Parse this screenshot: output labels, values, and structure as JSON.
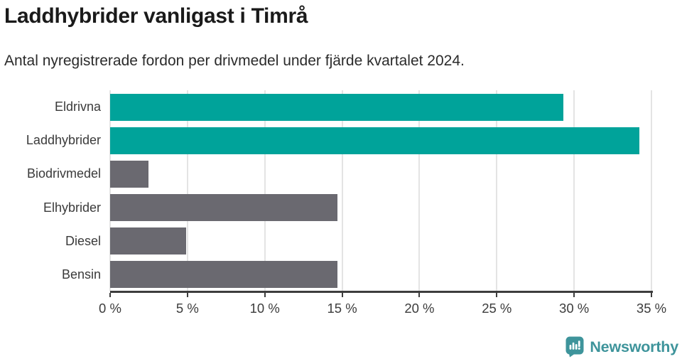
{
  "colors": {
    "accent_teal": "#00a39a",
    "bar_gray": "#6a6970",
    "gridline": "#e4e4e4",
    "axis": "#3d3d3d",
    "title_text": "#1a1a1a",
    "logo_teal": "#3e949b"
  },
  "chart_data": {
    "type": "bar",
    "orientation": "horizontal",
    "title": "Laddhybrider vanligast i Timrå",
    "subtitle": "Antal nyregistrerade fordon per drivmedel under fjärde kvartalet 2024.",
    "categories": [
      "Eldrivna",
      "Laddhybrider",
      "Biodrivmedel",
      "Elhybrider",
      "Diesel",
      "Bensin"
    ],
    "values": [
      29.3,
      34.2,
      2.5,
      14.7,
      4.9,
      14.7
    ],
    "bar_colors": [
      "teal",
      "teal",
      "gray",
      "gray",
      "gray",
      "gray"
    ],
    "xlim": [
      0,
      35
    ],
    "x_tick_values": [
      0,
      5,
      10,
      15,
      20,
      25,
      30,
      35
    ],
    "x_ticks": [
      "0 %",
      "5 %",
      "10 %",
      "15 %",
      "20 %",
      "25 %",
      "30 %",
      "35 %"
    ],
    "grid": true,
    "legend": false,
    "unit": "percent"
  },
  "footer": {
    "brand": "Newsworthy"
  }
}
